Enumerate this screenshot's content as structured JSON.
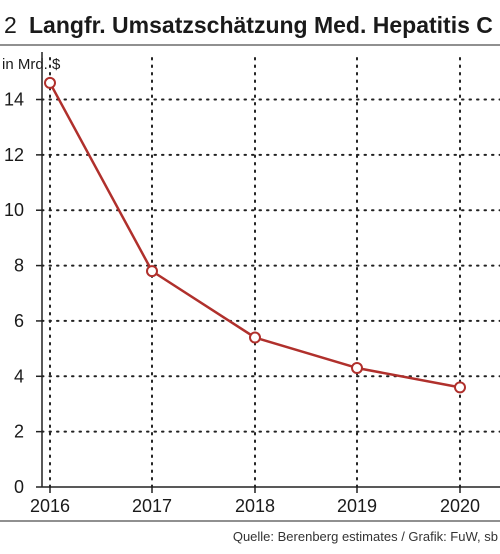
{
  "chart_data": {
    "type": "line",
    "number": "2",
    "title": "Langfr. Umsatzschätzung Med. Hepatitis C",
    "ylabel": "in Mrd. $",
    "xlabel": "",
    "categories": [
      "2016",
      "2017",
      "2018",
      "2019",
      "2020"
    ],
    "series": [
      {
        "values": [
          14.6,
          7.8,
          5.4,
          4.3,
          3.6
        ]
      }
    ],
    "ylim": [
      0,
      15.5
    ],
    "yticks": [
      "0",
      "2",
      "4",
      "6",
      "8",
      "10",
      "12",
      "14"
    ],
    "grid": true,
    "source": "Quelle: Berenberg estimates / Grafik: FuW, sb",
    "colors": {
      "line": "#b0302c",
      "grid": "#222222",
      "axis": "#222222"
    }
  }
}
